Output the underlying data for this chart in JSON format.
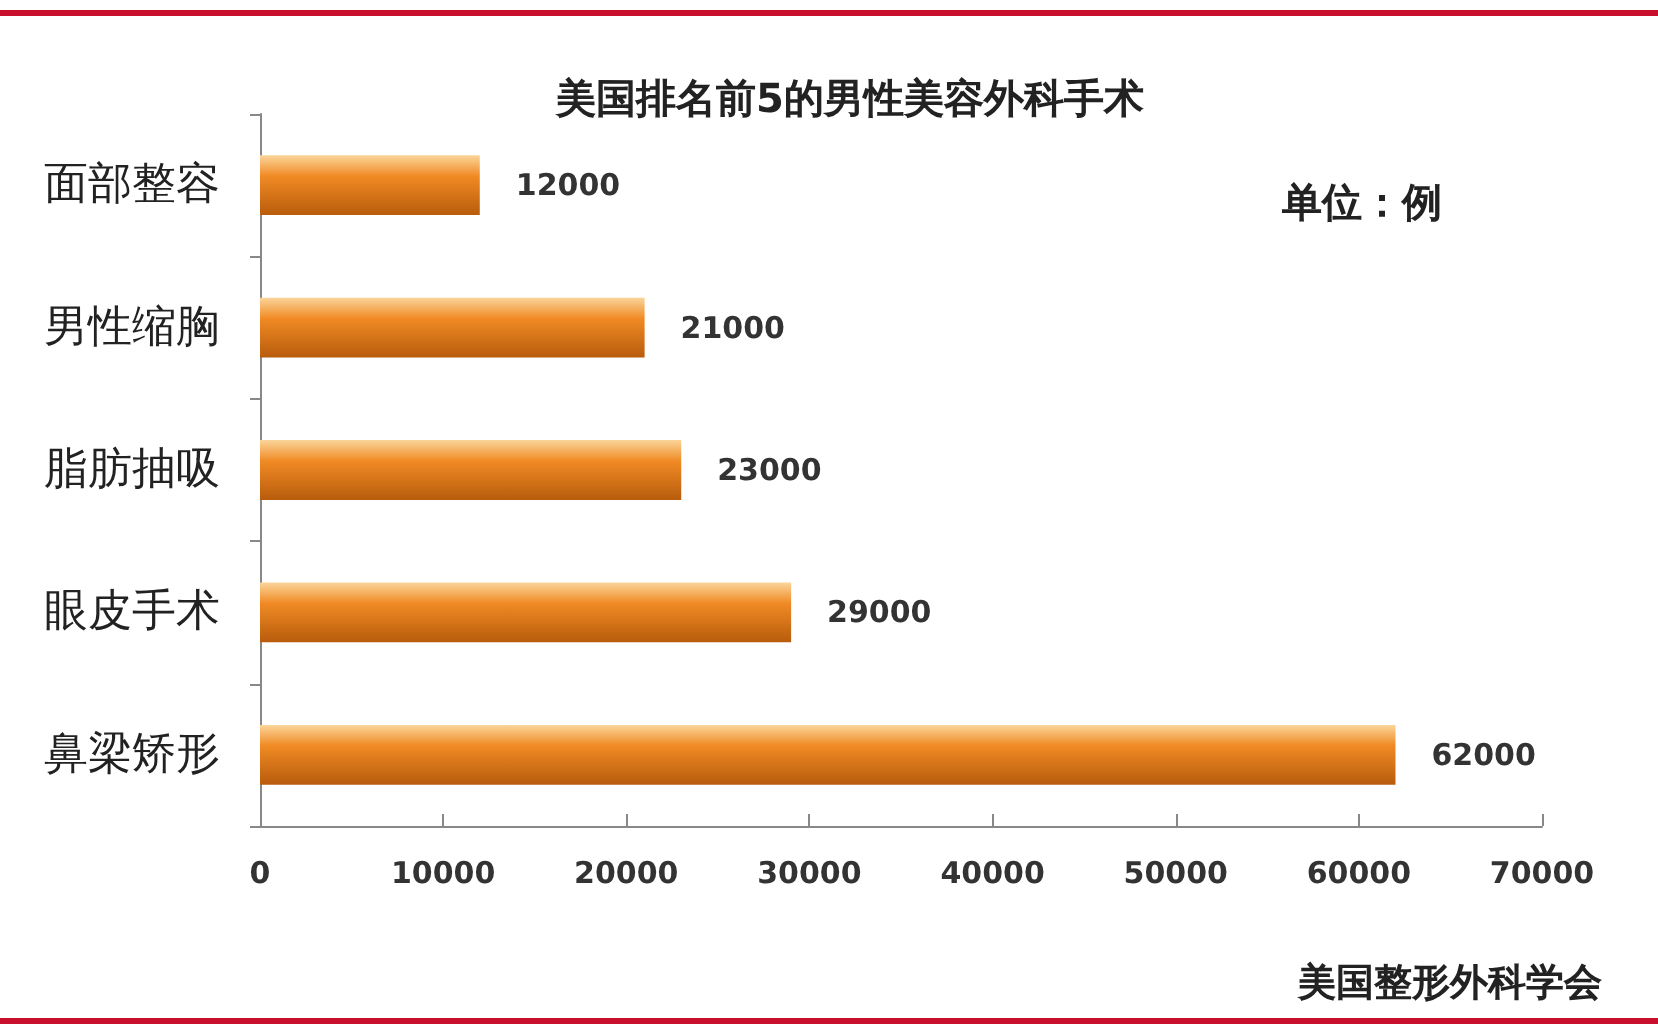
{
  "chart_data": {
    "type": "bar",
    "orientation": "horizontal",
    "title": "美国排名前5的男性美容外科手术",
    "categories": [
      "面部整容",
      "男性缩胸",
      "脂肪抽吸",
      "眼皮手术",
      "鼻梁矫形"
    ],
    "values": [
      12000,
      21000,
      23000,
      29000,
      62000
    ],
    "color": "#f08a24",
    "xlim": [
      0,
      70000
    ],
    "xticks": [
      0,
      10000,
      20000,
      30000,
      40000,
      50000,
      60000,
      70000
    ],
    "data_labels": true,
    "grid": false,
    "annotations": [
      "单位：例",
      "美国整形外科学会"
    ]
  }
}
